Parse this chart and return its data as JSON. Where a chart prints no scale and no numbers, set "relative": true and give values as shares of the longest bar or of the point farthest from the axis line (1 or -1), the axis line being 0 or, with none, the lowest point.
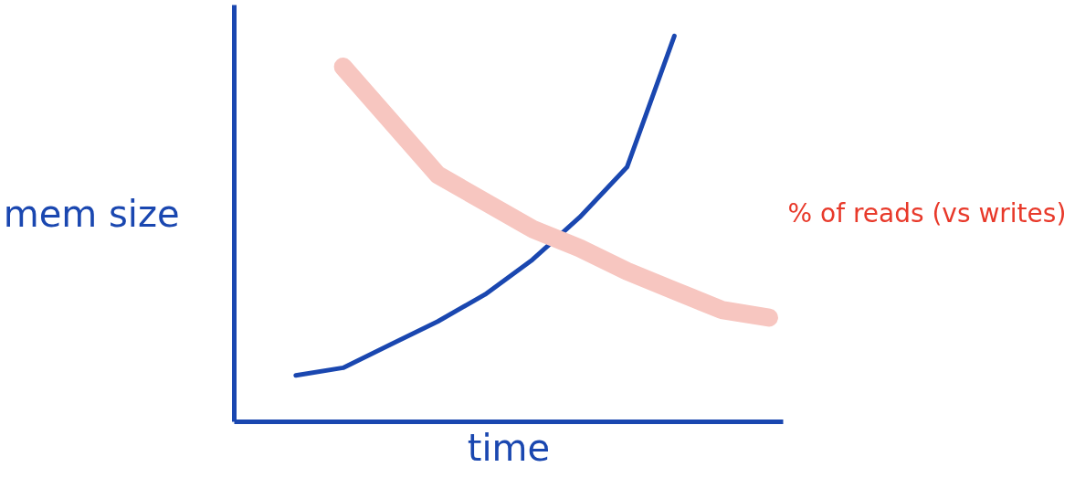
{
  "chart_data": {
    "type": "line",
    "relative": true,
    "xlabel": "time",
    "ylabel": "mem size",
    "y2label": "% of reads (vs writes)",
    "categories": [
      null,
      null,
      null,
      null,
      null,
      null,
      null,
      null,
      null,
      null,
      null,
      null
    ],
    "series": [
      {
        "color": "#1a47b0",
        "values": [
          null,
          0.12,
          0.14,
          0.2,
          0.26,
          0.33,
          0.42,
          0.53,
          0.66,
          1.0,
          null,
          null
        ]
      },
      {
        "color": "#f7c6c0",
        "values": [
          null,
          null,
          0.92,
          0.78,
          0.64,
          0.57,
          0.5,
          0.45,
          0.39,
          0.34,
          0.29,
          0.27
        ]
      }
    ]
  }
}
